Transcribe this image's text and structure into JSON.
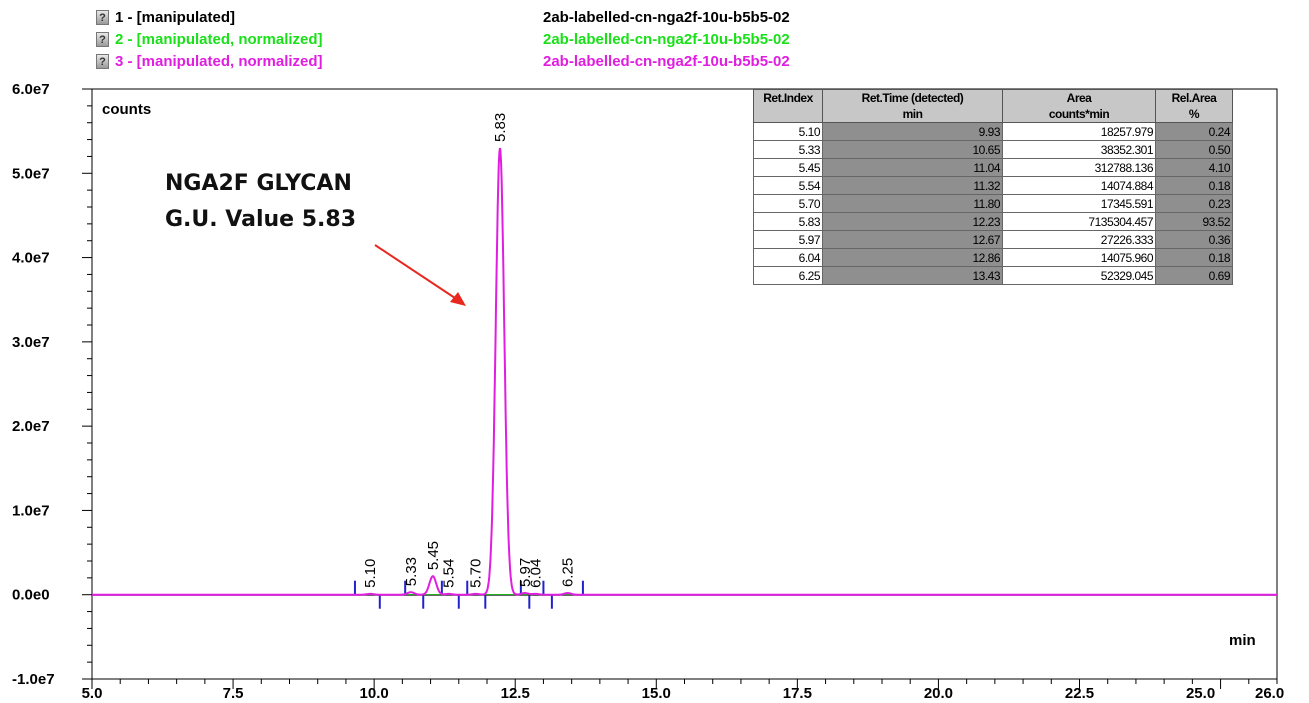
{
  "legend": [
    {
      "icon": "question-icon",
      "label": "1 - [manipulated]",
      "sample": "2ab-labelled-cn-nga2f-10u-b5b5-02",
      "color": "#000000"
    },
    {
      "icon": "question-icon",
      "label": "2 - [manipulated, normalized]",
      "sample": "2ab-labelled-cn-nga2f-10u-b5b5-02",
      "color": "#19e019"
    },
    {
      "icon": "question-icon",
      "label": "3 - [manipulated, normalized]",
      "sample": "2ab-labelled-cn-nga2f-10u-b5b5-02",
      "color": "#e01ee0"
    }
  ],
  "annotation": {
    "line1": "NGA2F GLYCAN",
    "line2": "G.U. Value 5.83",
    "arrow_color": "#e8281e"
  },
  "peak_table": {
    "headers": [
      [
        "Ret.Index",
        ""
      ],
      [
        "Ret.Time (detected)",
        "min"
      ],
      [
        "Area",
        "counts*min"
      ],
      [
        "Rel.Area",
        "%"
      ]
    ],
    "rows": [
      [
        "5.10",
        "9.93",
        "18257.979",
        "0.24"
      ],
      [
        "5.33",
        "10.65",
        "38352.301",
        "0.50"
      ],
      [
        "5.45",
        "11.04",
        "312788.136",
        "4.10"
      ],
      [
        "5.54",
        "11.32",
        "14074.884",
        "0.18"
      ],
      [
        "5.70",
        "11.80",
        "17345.591",
        "0.23"
      ],
      [
        "5.83",
        "12.23",
        "7135304.457",
        "93.52"
      ],
      [
        "5.97",
        "12.67",
        "27226.333",
        "0.36"
      ],
      [
        "6.04",
        "12.86",
        "14075.960",
        "0.18"
      ],
      [
        "6.25",
        "13.43",
        "52329.045",
        "0.69"
      ]
    ]
  },
  "chart_data": {
    "type": "line",
    "ylabel": "counts",
    "xlabel": "min",
    "xlim": [
      5.0,
      26.0
    ],
    "ylim": [
      -10000000.0,
      60000000.0
    ],
    "x_ticks": [
      "5.0",
      "7.5",
      "10.0",
      "12.5",
      "15.0",
      "17.5",
      "20.0",
      "22.5",
      "25.0",
      "26.0"
    ],
    "x_tick_values": [
      5.0,
      7.5,
      10.0,
      12.5,
      15.0,
      17.5,
      20.0,
      22.5,
      25.0,
      26.0
    ],
    "y_ticks": [
      "-1.0e7",
      "0.0e0",
      "1.0e7",
      "2.0e7",
      "3.0e7",
      "4.0e7",
      "5.0e7",
      "6.0e7"
    ],
    "y_tick_values": [
      -10000000.0,
      0,
      10000000.0,
      20000000.0,
      30000000.0,
      40000000.0,
      50000000.0,
      60000000.0
    ],
    "series": [
      {
        "color": "#e01ee0",
        "peaks": [
          {
            "x": 9.93,
            "height": 100000.0,
            "label": "5.10"
          },
          {
            "x": 10.65,
            "height": 300000.0,
            "label": "5.33"
          },
          {
            "x": 11.04,
            "height": 2200000.0,
            "label": "5.45"
          },
          {
            "x": 11.32,
            "height": 100000.0,
            "label": "5.54"
          },
          {
            "x": 11.8,
            "height": 100000.0,
            "label": "5.70"
          },
          {
            "x": 12.23,
            "height": 53000000.0,
            "label": "5.83"
          },
          {
            "x": 12.67,
            "height": 200000.0,
            "label": "5.97"
          },
          {
            "x": 12.86,
            "height": 100000.0,
            "label": "6.04"
          },
          {
            "x": 13.43,
            "height": 200000.0,
            "label": "6.25"
          }
        ]
      }
    ],
    "integration_markers": [
      9.66,
      10.1,
      10.55,
      10.87,
      11.2,
      11.5,
      11.65,
      11.97,
      12.6,
      12.75,
      13.0,
      13.15,
      13.7
    ]
  }
}
